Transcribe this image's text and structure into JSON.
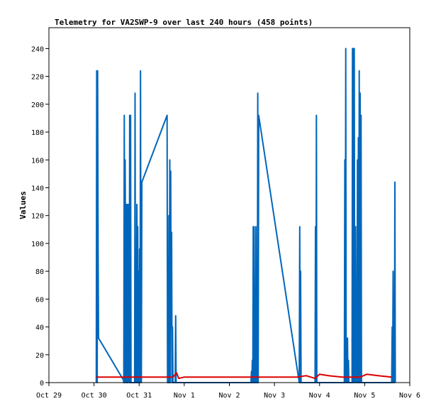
{
  "chart_data": {
    "type": "line",
    "title": "Telemetry for VA2SWP-9 over last 240 hours (458 points)",
    "xlabel": "",
    "ylabel": "Values",
    "ylim": [
      0,
      255
    ],
    "xlim": [
      0,
      8
    ],
    "x_ticks": [
      {
        "x": 0,
        "label": "Oct 29"
      },
      {
        "x": 1,
        "label": "Oct 30"
      },
      {
        "x": 2,
        "label": "Oct 31"
      },
      {
        "x": 3,
        "label": "Nov 1"
      },
      {
        "x": 4,
        "label": "Nov 2"
      },
      {
        "x": 5,
        "label": "Nov 3"
      },
      {
        "x": 6,
        "label": "Nov 4"
      },
      {
        "x": 7,
        "label": "Nov 5"
      },
      {
        "x": 8,
        "label": "Nov 6"
      }
    ],
    "y_ticks": [
      0,
      20,
      40,
      60,
      80,
      100,
      120,
      140,
      160,
      180,
      200,
      220,
      240
    ],
    "grid": false,
    "series": [
      {
        "color": "#0066bb",
        "points": [
          [
            1.05,
            0
          ],
          [
            1.06,
            224
          ],
          [
            1.07,
            0
          ],
          [
            1.08,
            224
          ],
          [
            1.09,
            96
          ],
          [
            1.1,
            32
          ],
          [
            1.65,
            2
          ],
          [
            1.66,
            0
          ],
          [
            1.67,
            192
          ],
          [
            1.68,
            0
          ],
          [
            1.69,
            160
          ],
          [
            1.7,
            80
          ],
          [
            1.71,
            0
          ],
          [
            1.72,
            128
          ],
          [
            1.73,
            0
          ],
          [
            1.74,
            128
          ],
          [
            1.75,
            0
          ],
          [
            1.76,
            128
          ],
          [
            1.77,
            96
          ],
          [
            1.78,
            0
          ],
          [
            1.79,
            192
          ],
          [
            1.8,
            0
          ],
          [
            1.81,
            192
          ],
          [
            1.82,
            0
          ],
          [
            1.9,
            0
          ],
          [
            1.91,
            208
          ],
          [
            1.92,
            0
          ],
          [
            1.93,
            64
          ],
          [
            1.94,
            0
          ],
          [
            1.95,
            128
          ],
          [
            1.96,
            0
          ],
          [
            1.97,
            112
          ],
          [
            1.98,
            0
          ],
          [
            1.99,
            80
          ],
          [
            2.0,
            0
          ],
          [
            2.01,
            96
          ],
          [
            2.02,
            0
          ],
          [
            2.03,
            224
          ],
          [
            2.04,
            48
          ],
          [
            2.05,
            0
          ],
          [
            2.06,
            144
          ],
          [
            2.62,
            192
          ],
          [
            2.63,
            0
          ],
          [
            2.64,
            80
          ],
          [
            2.65,
            0
          ],
          [
            2.66,
            120
          ],
          [
            2.67,
            0
          ],
          [
            2.68,
            160
          ],
          [
            2.69,
            0
          ],
          [
            2.7,
            152
          ],
          [
            2.71,
            40
          ],
          [
            2.72,
            108
          ],
          [
            2.73,
            0
          ],
          [
            2.74,
            40
          ],
          [
            2.75,
            0
          ],
          [
            2.8,
            0
          ],
          [
            2.81,
            48
          ],
          [
            2.82,
            0
          ],
          [
            4.48,
            0
          ],
          [
            4.49,
            8
          ],
          [
            4.5,
            0
          ],
          [
            4.51,
            16
          ],
          [
            4.52,
            0
          ],
          [
            4.53,
            112
          ],
          [
            4.54,
            0
          ],
          [
            4.55,
            112
          ],
          [
            4.56,
            0
          ],
          [
            4.57,
            64
          ],
          [
            4.58,
            0
          ],
          [
            4.59,
            112
          ],
          [
            4.6,
            0
          ],
          [
            4.61,
            16
          ],
          [
            4.62,
            0
          ],
          [
            4.63,
            208
          ],
          [
            4.64,
            0
          ],
          [
            4.65,
            192
          ],
          [
            5.55,
            0
          ],
          [
            5.56,
            112
          ],
          [
            5.57,
            0
          ],
          [
            5.58,
            80
          ],
          [
            5.59,
            0
          ],
          [
            5.9,
            0
          ],
          [
            5.91,
            112
          ],
          [
            5.92,
            0
          ],
          [
            5.93,
            192
          ],
          [
            5.94,
            0
          ],
          [
            6.55,
            0
          ],
          [
            6.56,
            160
          ],
          [
            6.57,
            0
          ],
          [
            6.58,
            240
          ],
          [
            6.59,
            0
          ],
          [
            6.6,
            16
          ],
          [
            6.61,
            0
          ],
          [
            6.62,
            32
          ],
          [
            6.63,
            0
          ],
          [
            6.64,
            16
          ],
          [
            6.65,
            0
          ],
          [
            6.72,
            0
          ],
          [
            6.73,
            240
          ],
          [
            6.74,
            0
          ],
          [
            6.75,
            240
          ],
          [
            6.76,
            0
          ],
          [
            6.77,
            240
          ],
          [
            6.78,
            0
          ],
          [
            6.8,
            112
          ],
          [
            6.81,
            0
          ],
          [
            6.82,
            64
          ],
          [
            6.83,
            0
          ],
          [
            6.84,
            160
          ],
          [
            6.85,
            0
          ],
          [
            6.86,
            176
          ],
          [
            6.87,
            0
          ],
          [
            6.88,
            224
          ],
          [
            6.89,
            0
          ],
          [
            6.9,
            208
          ],
          [
            6.91,
            0
          ],
          [
            6.92,
            192
          ],
          [
            6.93,
            0
          ],
          [
            7.6,
            0
          ],
          [
            7.61,
            40
          ],
          [
            7.62,
            0
          ],
          [
            7.63,
            80
          ],
          [
            7.64,
            0
          ],
          [
            7.65,
            64
          ],
          [
            7.66,
            0
          ],
          [
            7.67,
            144
          ],
          [
            7.68,
            0
          ]
        ]
      },
      {
        "color": "#dd0000",
        "points": [
          [
            1.05,
            4
          ],
          [
            1.3,
            4
          ],
          [
            1.6,
            4
          ],
          [
            1.9,
            4
          ],
          [
            2.2,
            4
          ],
          [
            2.5,
            4
          ],
          [
            2.75,
            4
          ],
          [
            2.83,
            7
          ],
          [
            2.88,
            3
          ],
          [
            3.0,
            4
          ],
          [
            3.5,
            4
          ],
          [
            4.0,
            4
          ],
          [
            4.5,
            4
          ],
          [
            5.0,
            4
          ],
          [
            5.5,
            4
          ],
          [
            5.7,
            5
          ],
          [
            5.9,
            3
          ],
          [
            6.0,
            6
          ],
          [
            6.2,
            5
          ],
          [
            6.5,
            4
          ],
          [
            6.7,
            4
          ],
          [
            6.9,
            4
          ],
          [
            7.05,
            6
          ],
          [
            7.3,
            5
          ],
          [
            7.6,
            4
          ]
        ]
      }
    ]
  }
}
